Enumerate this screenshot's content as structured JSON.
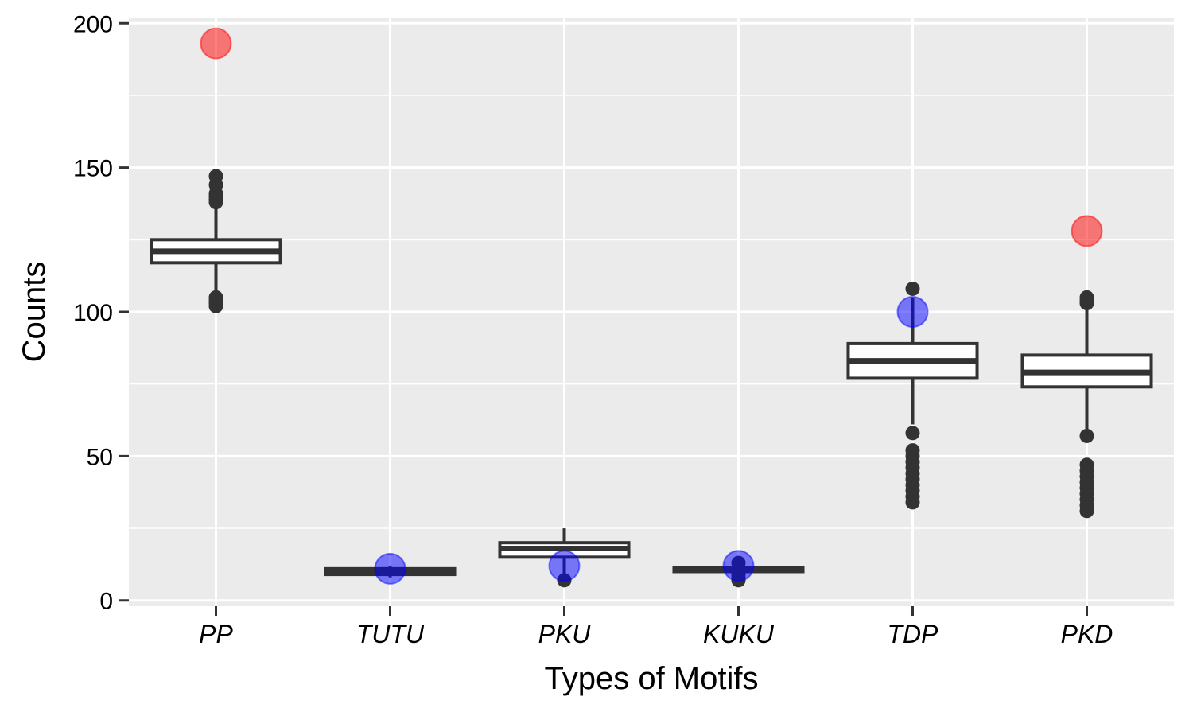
{
  "chart_data": {
    "type": "box",
    "title": "",
    "xlabel": "Types of Motifs",
    "ylabel": "Counts",
    "ylim": [
      -2,
      202
    ],
    "yticks": [
      0,
      50,
      100,
      150,
      200
    ],
    "y_minor_ticks": [
      25,
      75,
      125,
      175
    ],
    "grid": true,
    "legend": "none",
    "colors": {
      "panel_background": "#EBEBEB",
      "grid": "#FFFFFF",
      "box_stroke": "#333333",
      "box_fill": "#FFFFFF",
      "outlier": "#333333",
      "red_point": "#FF0000",
      "blue_point": "#0000FF"
    },
    "categories": [
      "PP",
      "TUTU",
      "PKU",
      "KUKU",
      "TDP",
      "PKD"
    ],
    "boxes": [
      {
        "category": "PP",
        "whisker_low": 106,
        "q1": 117,
        "median": 121,
        "q3": 125,
        "whisker_high": 136,
        "outliers": [
          102,
          103,
          104,
          105,
          138,
          139,
          140,
          141,
          144,
          147
        ]
      },
      {
        "category": "TUTU",
        "whisker_low": 8,
        "q1": 9,
        "median": 10,
        "q3": 11,
        "whisker_high": 12,
        "outliers": []
      },
      {
        "category": "PKU",
        "whisker_low": 9,
        "q1": 15,
        "median": 18,
        "q3": 20,
        "whisker_high": 25,
        "outliers": [
          7
        ]
      },
      {
        "category": "KUKU",
        "whisker_low": 10,
        "q1": 10,
        "median": 11,
        "q3": 11.5,
        "whisker_high": 12,
        "outliers": [
          7,
          8,
          9,
          13
        ]
      },
      {
        "category": "TDP",
        "whisker_low": 61,
        "q1": 77,
        "median": 83,
        "q3": 89,
        "whisker_high": 105,
        "outliers": [
          34,
          36,
          38,
          40,
          42,
          44,
          46,
          48,
          50,
          52,
          58,
          108
        ]
      },
      {
        "category": "PKD",
        "whisker_low": 58,
        "q1": 74,
        "median": 79,
        "q3": 85,
        "whisker_high": 101,
        "outliers": [
          31,
          33,
          35,
          37,
          39,
          41,
          43,
          45,
          47,
          57,
          103,
          104,
          105
        ]
      }
    ],
    "observed_points": [
      {
        "category": "PP",
        "value": 193,
        "color": "red"
      },
      {
        "category": "TUTU",
        "value": 11,
        "color": "blue"
      },
      {
        "category": "PKU",
        "value": 12,
        "color": "blue"
      },
      {
        "category": "KUKU",
        "value": 12,
        "color": "blue"
      },
      {
        "category": "TDP",
        "value": 100,
        "color": "blue"
      },
      {
        "category": "PKD",
        "value": 128,
        "color": "red"
      }
    ]
  }
}
